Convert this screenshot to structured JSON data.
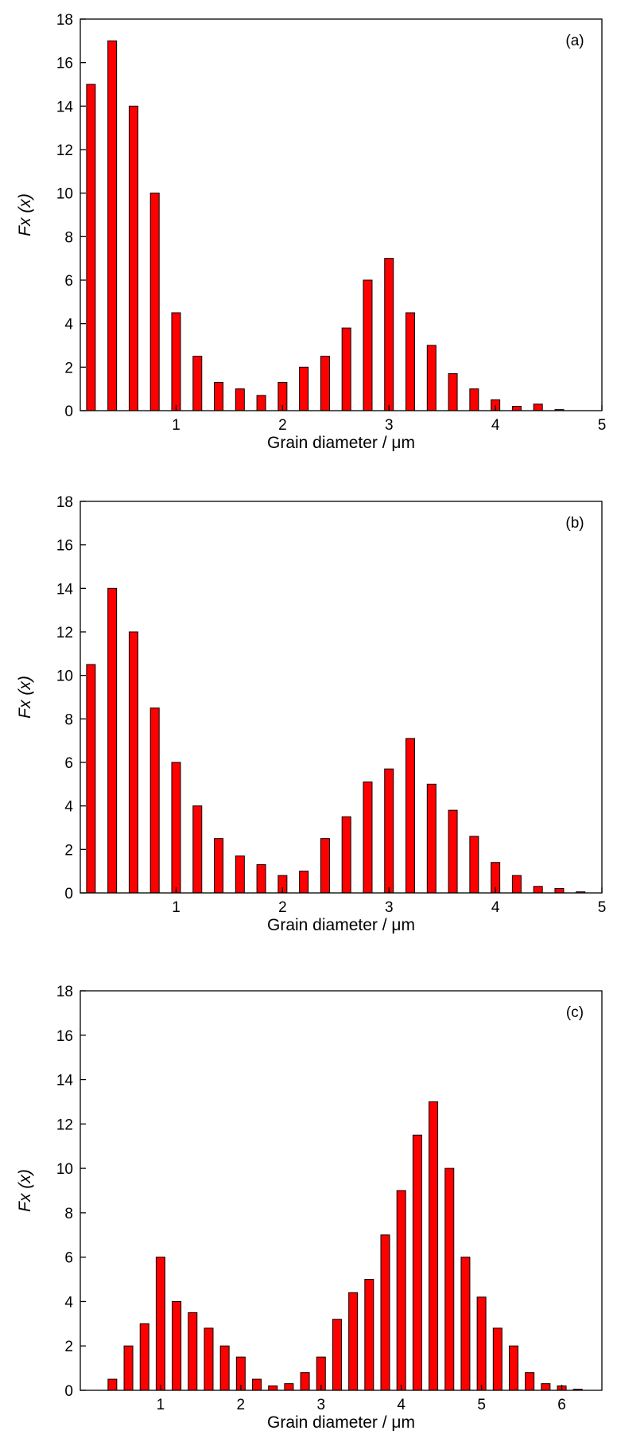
{
  "colors": {
    "bar_fill": "#ff0000",
    "bar_stroke": "#000000",
    "axis": "#000000"
  },
  "chart_data": [
    {
      "type": "bar",
      "label": "(a)",
      "xlabel": "Grain diameter / μm",
      "ylabel": "Fx (x)",
      "xlim": [
        0.1,
        5.0
      ],
      "ylim": [
        0,
        18
      ],
      "xticks": [
        1,
        2,
        3,
        4,
        5
      ],
      "yticks": [
        0,
        2,
        4,
        6,
        8,
        10,
        12,
        14,
        16,
        18
      ],
      "grid": false,
      "x": [
        0.2,
        0.4,
        0.6,
        0.8,
        1.0,
        1.2,
        1.4,
        1.6,
        1.8,
        2.0,
        2.2,
        2.4,
        2.6,
        2.8,
        3.0,
        3.2,
        3.4,
        3.6,
        3.8,
        4.0,
        4.2,
        4.4,
        4.6
      ],
      "values": [
        15,
        17,
        14,
        10,
        4.5,
        2.5,
        1.3,
        1.0,
        0.7,
        1.3,
        2.0,
        2.5,
        3.8,
        6.0,
        7.0,
        4.5,
        3.0,
        1.7,
        1.0,
        0.5,
        0.2,
        0.3,
        0.05
      ]
    },
    {
      "type": "bar",
      "label": "(b)",
      "xlabel": "Grain diameter / μm",
      "ylabel": "Fx (x)",
      "xlim": [
        0.1,
        5.0
      ],
      "ylim": [
        0,
        18
      ],
      "xticks": [
        1,
        2,
        3,
        4,
        5
      ],
      "yticks": [
        0,
        2,
        4,
        6,
        8,
        10,
        12,
        14,
        16,
        18
      ],
      "grid": false,
      "x": [
        0.2,
        0.4,
        0.6,
        0.8,
        1.0,
        1.2,
        1.4,
        1.6,
        1.8,
        2.0,
        2.2,
        2.4,
        2.6,
        2.8,
        3.0,
        3.2,
        3.4,
        3.6,
        3.8,
        4.0,
        4.2,
        4.4,
        4.6,
        4.8
      ],
      "values": [
        10.5,
        14,
        12,
        8.5,
        6.0,
        4.0,
        2.5,
        1.7,
        1.3,
        0.8,
        1.0,
        2.5,
        3.5,
        5.1,
        5.7,
        7.1,
        5.0,
        3.8,
        2.6,
        1.4,
        0.8,
        0.3,
        0.2,
        0.05
      ]
    },
    {
      "type": "bar",
      "label": "(c)",
      "xlabel": "Grain diameter / μm",
      "ylabel": "Fx (x)",
      "xlim": [
        0.0,
        6.5
      ],
      "ylim": [
        0,
        18
      ],
      "xticks": [
        1,
        2,
        3,
        4,
        5,
        6
      ],
      "yticks": [
        0,
        2,
        4,
        6,
        8,
        10,
        12,
        14,
        16,
        18
      ],
      "grid": false,
      "x": [
        0.4,
        0.6,
        0.8,
        1.0,
        1.2,
        1.4,
        1.6,
        1.8,
        2.0,
        2.2,
        2.4,
        2.6,
        2.8,
        3.0,
        3.2,
        3.4,
        3.6,
        3.8,
        4.0,
        4.2,
        4.4,
        4.6,
        4.8,
        5.0,
        5.2,
        5.4,
        5.6,
        5.8,
        6.0,
        6.2
      ],
      "values": [
        0.5,
        2.0,
        3.0,
        6.0,
        4.0,
        3.5,
        2.8,
        2.0,
        1.5,
        0.5,
        0.2,
        0.3,
        0.8,
        1.5,
        3.2,
        4.4,
        5.0,
        7.0,
        9.0,
        11.5,
        13.0,
        10.0,
        6.0,
        4.2,
        2.8,
        2.0,
        0.8,
        0.3,
        0.2,
        0.05
      ]
    }
  ]
}
